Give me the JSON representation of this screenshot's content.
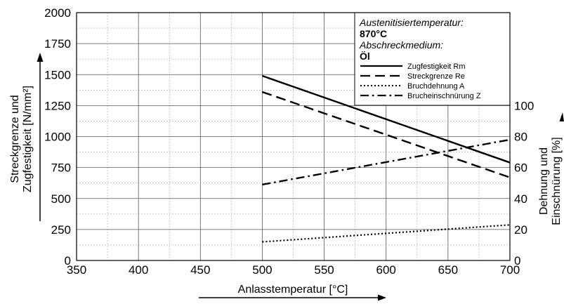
{
  "chart_data": {
    "type": "line",
    "x": [
      500,
      700
    ],
    "xlim": [
      350,
      700
    ],
    "x_ticks": [
      350,
      400,
      450,
      500,
      550,
      600,
      650,
      700
    ],
    "xlabel": "Anlasstemperatur [°C]",
    "ylabel_left_line1": "Streckgrenze und",
    "ylabel_left_line2": "Zugfestigkeit [N/mm²]",
    "ylim_left": [
      0,
      2000
    ],
    "y_ticks_left": [
      0,
      250,
      500,
      750,
      1000,
      1250,
      1500,
      1750,
      2000
    ],
    "ylabel_right_line1": "Dehnung und",
    "ylabel_right_line2": "Einschnürung [%]",
    "ylim_right": [
      0,
      160
    ],
    "y_ticks_right": [
      0,
      20,
      40,
      60,
      80,
      100
    ],
    "grid": true,
    "legend_position": "top-right",
    "conditions": {
      "temp_label": "Austenitisiertemperatur:",
      "temp_value": "870°C",
      "medium_label": "Abschreckmedium:",
      "medium_value": "Öl"
    },
    "series": [
      {
        "name": "Zugfestigkeit Rm",
        "axis": "left",
        "style": "solid",
        "values": [
          1490,
          790
        ]
      },
      {
        "name": "Streckgrenze Re",
        "axis": "left",
        "style": "dashed",
        "values": [
          1360,
          670
        ]
      },
      {
        "name": "Bruchdehnung A",
        "axis": "right",
        "style": "dotted",
        "values": [
          12,
          23
        ]
      },
      {
        "name": "Brucheinschnürung Z",
        "axis": "right",
        "style": "dashdot",
        "values": [
          49,
          78
        ]
      }
    ]
  }
}
